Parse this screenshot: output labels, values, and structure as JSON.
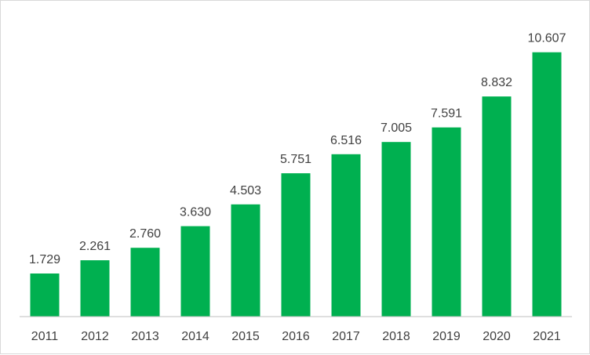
{
  "chart_data": {
    "type": "bar",
    "title": "",
    "xlabel": "",
    "ylabel": "",
    "categories": [
      "2011",
      "2012",
      "2013",
      "2014",
      "2015",
      "2016",
      "2017",
      "2018",
      "2019",
      "2020",
      "2021"
    ],
    "values": [
      1.729,
      2.261,
      2.76,
      3.63,
      4.503,
      5.751,
      6.516,
      7.005,
      7.591,
      8.832,
      10.607
    ],
    "value_labels": [
      "1.729",
      "2.261",
      "2.760",
      "3.630",
      "4.503",
      "5.751",
      "6.516",
      "7.005",
      "7.591",
      "8.832",
      "10.607"
    ],
    "ylim": [
      0,
      12
    ],
    "bar_color": "#00b050",
    "axis_color": "#bfbfbf",
    "grid": false,
    "legend": false
  }
}
